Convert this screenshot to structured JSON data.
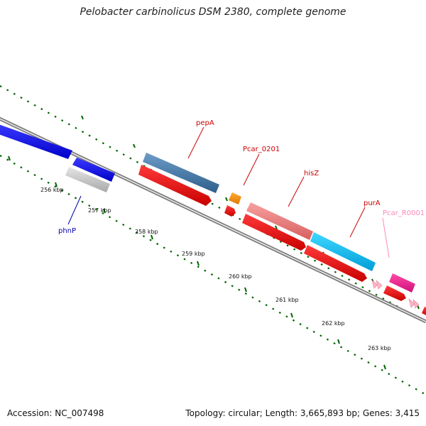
{
  "title": "Pelobacter carbinolicus DSM 2380, complete genome",
  "footer": {
    "accession": "Accession: NC_007498",
    "summary": "Topology: circular; Length: 3,665,893 bp; Genes: 3,415"
  },
  "ticks": [
    "256 kbp",
    "257 kbp",
    "258 kbp",
    "259 kbp",
    "260 kbp",
    "261 kbp",
    "262 kbp",
    "263 kbp"
  ],
  "gene_labels": {
    "pepA": "pepA",
    "pcar_0201": "Pcar_0201",
    "hisZ": "hisZ",
    "purA": "purA",
    "pcar_r0001": "Pcar_R0001",
    "phnP": "phnP"
  },
  "colors": {
    "backbone": "#808080",
    "reverse_strand": "#ff0000",
    "phnP": "#0000ee",
    "grey_gene": "#c0c0c0",
    "pepA": "#4682b4",
    "pcar_0201": "#ff8c00",
    "hisZ": "#f08080",
    "purA": "#00bfff",
    "pcar_r0001": "#ff1493",
    "trna": "#ffb6c1",
    "tick": "#006400"
  }
}
